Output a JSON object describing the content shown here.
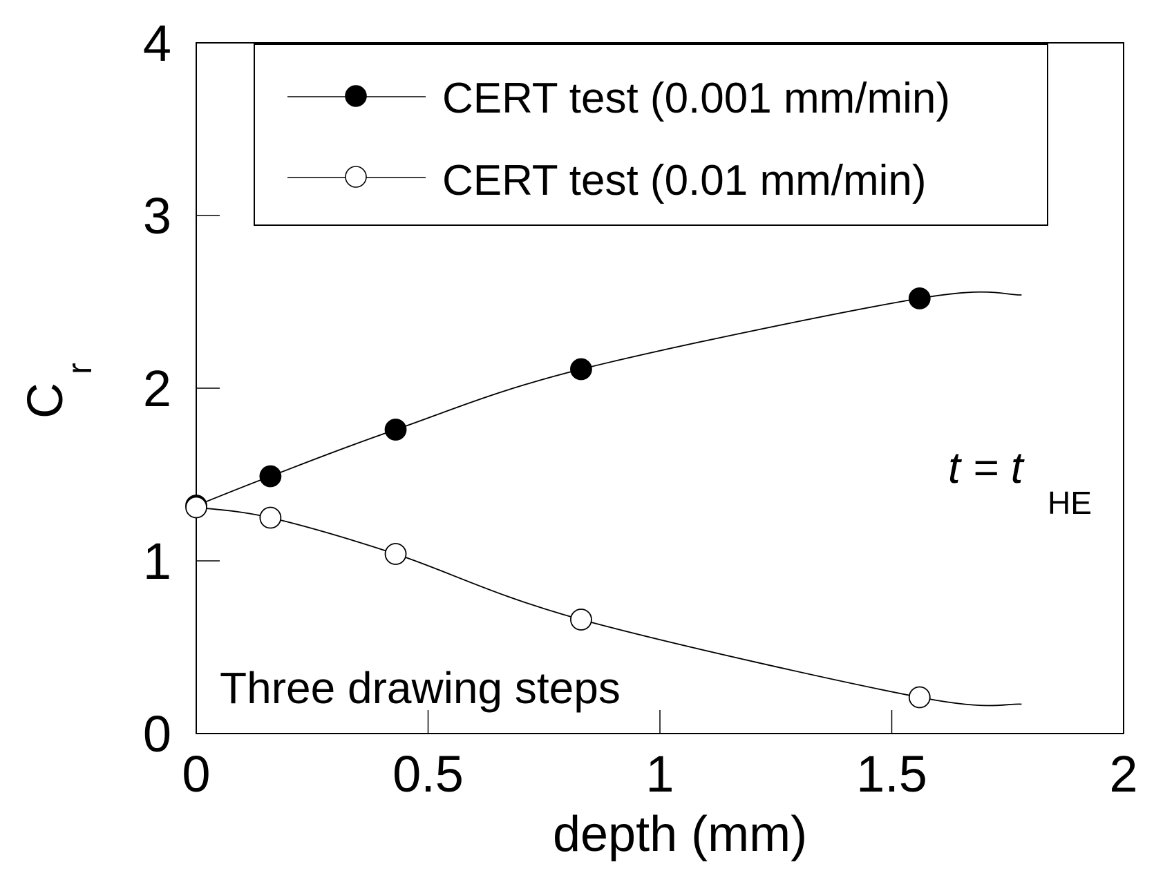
{
  "chart_data": {
    "type": "line",
    "title": "",
    "xlabel": "depth (mm)",
    "ylabel": "C",
    "ylabel_subscript": "r",
    "xlim": [
      0,
      2
    ],
    "ylim": [
      0,
      4
    ],
    "xticks": [
      {
        "value": 0,
        "label": "0"
      },
      {
        "value": 0.5,
        "label": "0.5"
      },
      {
        "value": 1,
        "label": "1"
      },
      {
        "value": 1.5,
        "label": "1.5"
      },
      {
        "value": 2,
        "label": "2"
      }
    ],
    "yticks": [
      {
        "value": 0,
        "label": "0"
      },
      {
        "value": 1,
        "label": "1"
      },
      {
        "value": 2,
        "label": "2"
      },
      {
        "value": 3,
        "label": "3"
      },
      {
        "value": 4,
        "label": "4"
      }
    ],
    "grid": false,
    "legend_position": "top",
    "series": [
      {
        "name": "CERT test (0.001 mm/min)",
        "marker": "filled-circle",
        "points": [
          {
            "x": 0.0,
            "y": 1.32
          },
          {
            "x": 0.16,
            "y": 1.49
          },
          {
            "x": 0.43,
            "y": 1.76
          },
          {
            "x": 0.83,
            "y": 2.11
          },
          {
            "x": 1.56,
            "y": 2.52
          }
        ],
        "curve_end": {
          "x": 1.78,
          "y": 2.54
        }
      },
      {
        "name": "CERT test (0.01 mm/min)",
        "marker": "open-circle",
        "points": [
          {
            "x": 0.0,
            "y": 1.31
          },
          {
            "x": 0.16,
            "y": 1.25
          },
          {
            "x": 0.43,
            "y": 1.04
          },
          {
            "x": 0.83,
            "y": 0.66
          },
          {
            "x": 1.56,
            "y": 0.21
          }
        ],
        "curve_end": {
          "x": 1.78,
          "y": 0.17
        }
      }
    ],
    "annotations": {
      "condition_main": "t = t",
      "condition_subscript": "HE",
      "note": "Three drawing steps"
    },
    "colors": {
      "line": "#000000",
      "filled_marker": "#000000",
      "open_marker": "#ffffff"
    }
  }
}
